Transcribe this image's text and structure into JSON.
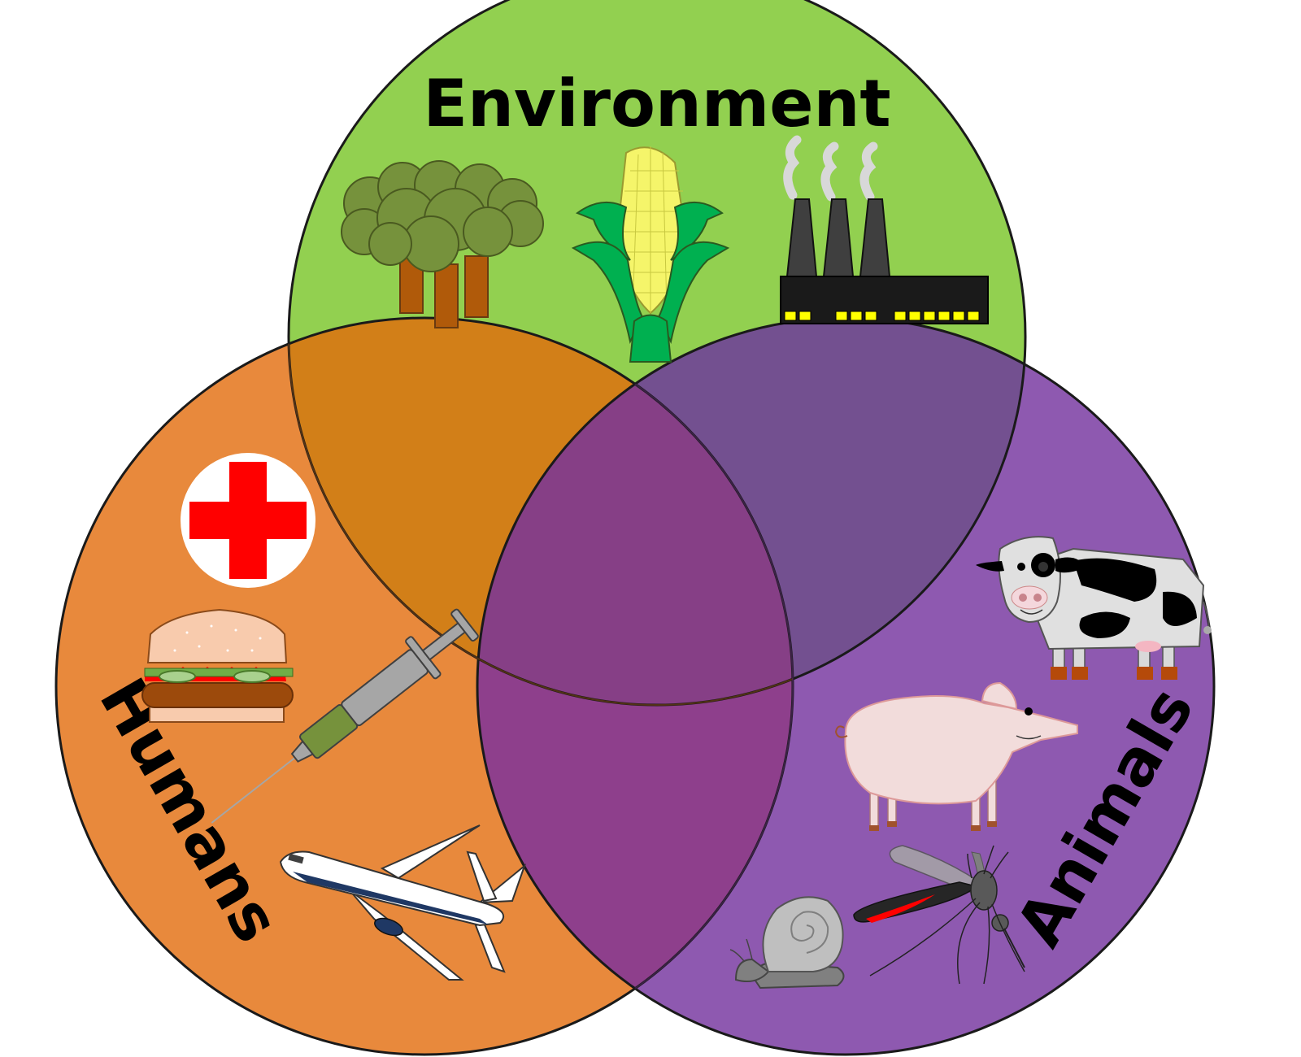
{
  "diagram": {
    "type": "venn",
    "sets": [
      {
        "label": "Environment",
        "color": "#92d050",
        "icons": [
          "trees-icon",
          "corn-icon",
          "factory-icon"
        ]
      },
      {
        "label": "Humans",
        "color": "#e8893c",
        "icons": [
          "red-cross-icon",
          "hamburger-icon",
          "syringe-icon",
          "airplane-icon"
        ]
      },
      {
        "label": "Animals",
        "color": "#8e59b0",
        "icons": [
          "cow-icon",
          "pig-icon",
          "snail-icon",
          "mosquito-icon"
        ]
      }
    ],
    "overlap_colors": {
      "environment_humans": "#d27f18",
      "environment_animals": "#735090",
      "humans_animals": "#8e3f8c",
      "all_three": "#863f86"
    }
  }
}
